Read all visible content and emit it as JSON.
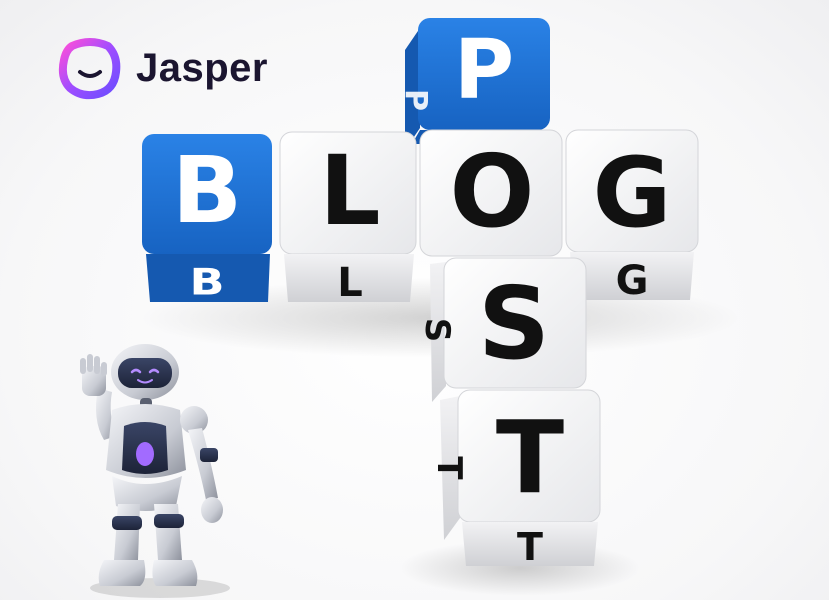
{
  "brand": {
    "name": "Jasper",
    "accent": "#7b4dff",
    "accent_secondary": "#ff4fd8",
    "text_color": "#1b1530",
    "icon": "jasper-smile-logo-icon"
  },
  "cubes": {
    "colors": {
      "blue_face": "#1f74d6",
      "blue_side": "#1559b0",
      "white_face": "#ffffff",
      "white_side": "#d9dadd",
      "letter_on_white": "#111111",
      "letter_on_blue": "#ffffff"
    },
    "horizontal_word": [
      "B",
      "L",
      "O",
      "G"
    ],
    "vertical_word": [
      "P",
      "O",
      "S",
      "T"
    ],
    "horizontal_colors": [
      "blue",
      "white",
      "white",
      "white"
    ],
    "vertical_colors": [
      "blue",
      "white",
      "white",
      "white"
    ]
  },
  "robot": {
    "icon": "waving-robot-mascot",
    "visor_color": "#141424",
    "eye_color": "#b48cff",
    "chest_light": "#a26bff"
  }
}
